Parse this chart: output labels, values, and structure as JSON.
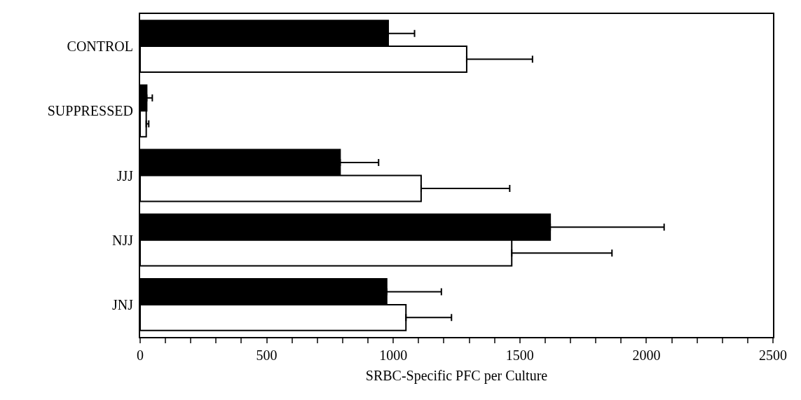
{
  "chart_data": {
    "type": "bar",
    "orientation": "horizontal",
    "categories": [
      "CONTROL",
      "SUPPRESSED",
      "JJJ",
      "NJJ",
      "JNJ"
    ],
    "series": [
      {
        "color": "#000000",
        "values": [
          980,
          26,
          790,
          1620,
          974
        ],
        "errors": [
          [
            980,
            1084
          ],
          [
            26,
            48
          ],
          [
            790,
            942
          ],
          [
            1620,
            2070
          ],
          [
            974,
            1190
          ]
        ]
      },
      {
        "color": "#ffffff",
        "values": [
          1290,
          24,
          1110,
          1468,
          1050
        ],
        "errors": [
          [
            1290,
            1550
          ],
          [
            24,
            34
          ],
          [
            1110,
            1460
          ],
          [
            1468,
            1864
          ],
          [
            1050,
            1230
          ]
        ]
      }
    ],
    "xlabel": "SRBC-Specific PFC per Culture",
    "xlim": [
      0,
      2500
    ],
    "xticks": [
      0,
      {
        "value": 100,
        "label": null
      },
      {
        "value": 200,
        "label": null
      },
      {
        "value": 300,
        "label": null
      },
      {
        "value": 400,
        "label": null
      },
      500,
      {
        "value": 600,
        "label": null
      },
      {
        "value": 700,
        "label": null
      },
      {
        "value": 800,
        "label": null
      },
      {
        "value": 900,
        "label": null
      },
      1000,
      {
        "value": 1100,
        "label": null
      },
      {
        "value": 1200,
        "label": null
      },
      {
        "value": 1300,
        "label": null
      },
      {
        "value": 1400,
        "label": null
      },
      1500,
      {
        "value": 1600,
        "label": null
      },
      {
        "value": 1700,
        "label": null
      },
      {
        "value": 1800,
        "label": null
      },
      {
        "value": 1900,
        "label": null
      },
      2000,
      {
        "value": 2100,
        "label": null
      },
      {
        "value": 2200,
        "label": null
      },
      {
        "value": 2300,
        "label": null
      },
      {
        "value": 2400,
        "label": null
      },
      2500
    ],
    "grid": false
  }
}
